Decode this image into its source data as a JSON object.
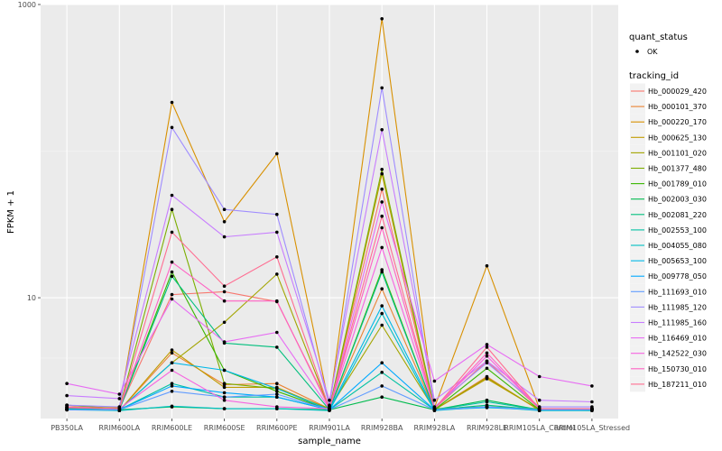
{
  "chart_data": {
    "type": "line",
    "xlabel": "sample_name",
    "ylabel": "FPKM + 1",
    "y_scale": "log10",
    "ylim": [
      1.5,
      1000
    ],
    "y_ticks": [
      {
        "value": 10,
        "label": "10"
      },
      {
        "value": 1000,
        "label": "1000"
      }
    ],
    "grid": true,
    "legend_position": "right",
    "categories": [
      "PB350LA",
      "RRIM600LA",
      "RRIM600LE",
      "RRIM600SE",
      "RRIM600PE",
      "RRIM901LA",
      "RRIM928BA",
      "RRIM928LA",
      "RRIM928LE",
      "RRIM105LA_Control",
      "RRIM105LA_Stressed"
    ],
    "quant_status": {
      "title": "quant_status",
      "entries": [
        "OK"
      ]
    },
    "legend_title": "tracking_id",
    "series": [
      {
        "name": "Hb_000029_420",
        "color": "#F8766D",
        "values": [
          1.85,
          1.75,
          10.5,
          11,
          9.4,
          1.8,
          55,
          1.75,
          3.7,
          1.75,
          1.75
        ]
      },
      {
        "name": "Hb_000101_370",
        "color": "#EA8331",
        "values": [
          1.75,
          1.7,
          4.2,
          2.55,
          2.6,
          1.75,
          11.5,
          1.72,
          2.9,
          1.7,
          1.75
        ]
      },
      {
        "name": "Hb_000220_170",
        "color": "#D89000",
        "values": [
          1.78,
          1.78,
          215,
          33,
          96,
          1.82,
          800,
          1.78,
          16.5,
          1.75,
          1.75
        ]
      },
      {
        "name": "Hb_000625_130",
        "color": "#C09B00",
        "values": [
          1.8,
          1.7,
          4.4,
          2.45,
          2.45,
          1.72,
          70,
          1.72,
          2.8,
          1.72,
          1.72
        ]
      },
      {
        "name": "Hb_001101_020",
        "color": "#A3A500",
        "values": [
          1.75,
          1.72,
          3.6,
          6.8,
          14.5,
          1.75,
          6.5,
          1.72,
          2.85,
          1.72,
          1.7
        ]
      },
      {
        "name": "Hb_001377_480",
        "color": "#7CAE00",
        "values": [
          1.85,
          1.75,
          40,
          2.6,
          2.4,
          1.75,
          75,
          1.75,
          1.8,
          1.75,
          1.75
        ]
      },
      {
        "name": "Hb_001789_010",
        "color": "#39B600",
        "values": [
          1.75,
          1.72,
          15,
          3.2,
          2.3,
          1.72,
          15.5,
          1.72,
          3.3,
          1.72,
          1.72
        ]
      },
      {
        "name": "Hb_002003_030",
        "color": "#00BB4E",
        "values": [
          1.72,
          1.72,
          1.8,
          1.75,
          1.75,
          1.72,
          2.1,
          1.72,
          2.0,
          1.72,
          1.72
        ]
      },
      {
        "name": "Hb_002081_220",
        "color": "#00BF7D",
        "values": [
          1.75,
          1.72,
          14,
          4.9,
          4.6,
          1.72,
          15,
          1.72,
          1.85,
          1.72,
          1.72
        ]
      },
      {
        "name": "Hb_002553_100",
        "color": "#00C1A3",
        "values": [
          1.72,
          1.72,
          2.6,
          2.1,
          2.1,
          1.72,
          3.1,
          1.72,
          1.95,
          1.72,
          1.72
        ]
      },
      {
        "name": "Hb_004055_080",
        "color": "#00BFC4",
        "values": [
          1.72,
          1.7,
          1.82,
          1.75,
          1.75,
          1.7,
          7.8,
          1.7,
          1.8,
          1.7,
          1.7
        ]
      },
      {
        "name": "Hb_005653_100",
        "color": "#00B8E7",
        "values": [
          1.72,
          1.72,
          3.6,
          3.2,
          2.4,
          1.72,
          8.8,
          1.72,
          1.78,
          1.72,
          1.72
        ]
      },
      {
        "name": "Hb_009778_050",
        "color": "#00A9FF",
        "values": [
          1.72,
          1.72,
          2.5,
          2.25,
          2.1,
          1.72,
          3.6,
          1.72,
          1.8,
          1.72,
          1.72
        ]
      },
      {
        "name": "Hb_111693_010",
        "color": "#619CFF",
        "values": [
          1.72,
          1.72,
          2.3,
          2.1,
          2.2,
          1.72,
          2.5,
          1.72,
          1.8,
          1.72,
          1.72
        ]
      },
      {
        "name": "Hb_111985_120",
        "color": "#9F8CFF",
        "values": [
          1.85,
          1.8,
          145,
          40,
          37,
          1.85,
          270,
          1.8,
          3.6,
          1.8,
          1.8
        ]
      },
      {
        "name": "Hb_111985_160",
        "color": "#C77CFF",
        "values": [
          2.15,
          2.05,
          50,
          26,
          28,
          2.0,
          140,
          2.0,
          3.7,
          2.0,
          1.95
        ]
      },
      {
        "name": "Hb_116469_010",
        "color": "#E76BF3",
        "values": [
          2.6,
          2.2,
          9.8,
          5.0,
          5.8,
          1.75,
          45,
          2.7,
          4.8,
          2.9,
          2.5
        ]
      },
      {
        "name": "Hb_142522_030",
        "color": "#F763E0",
        "values": [
          1.8,
          1.75,
          3.2,
          2.0,
          1.8,
          1.75,
          22,
          1.75,
          4.0,
          1.75,
          1.75
        ]
      },
      {
        "name": "Hb_150730_010",
        "color": "#FF61C3",
        "values": [
          1.78,
          1.75,
          17.5,
          9.5,
          9.5,
          1.75,
          30,
          1.75,
          4.2,
          1.75,
          1.75
        ]
      },
      {
        "name": "Hb_187211_010",
        "color": "#FF6C91",
        "values": [
          1.8,
          1.75,
          28,
          12,
          19,
          1.75,
          36,
          1.75,
          4.6,
          1.75,
          1.75
        ]
      }
    ]
  }
}
